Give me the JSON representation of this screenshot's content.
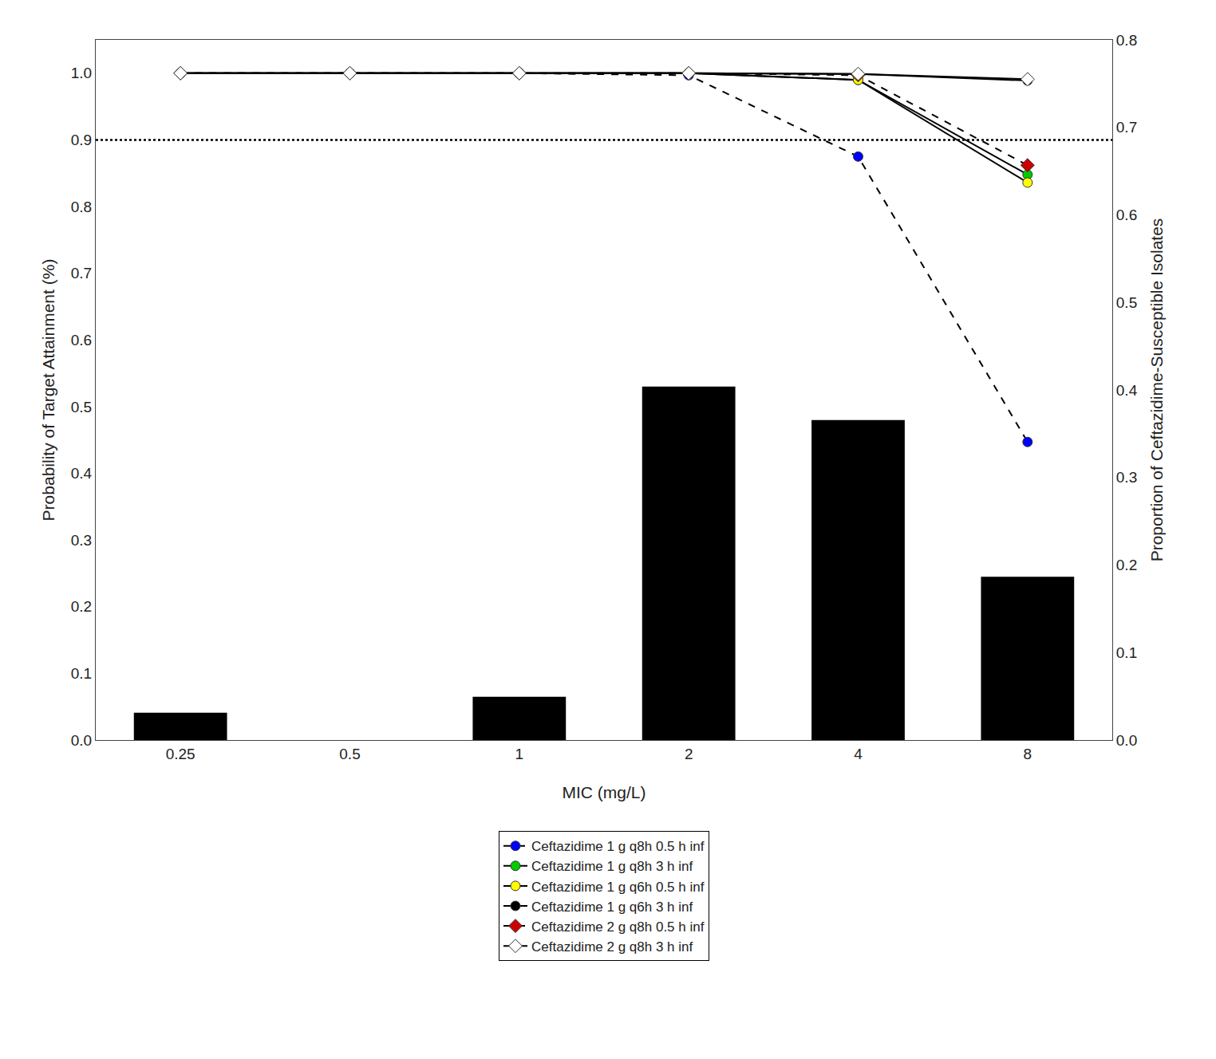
{
  "chart_data": {
    "type": "bar",
    "categories": [
      "0.25",
      "0.5",
      "1",
      "2",
      "4",
      "8"
    ],
    "x_label": "MIC (mg/L)",
    "y_label": "Probability of Target Attainment (%)",
    "y2_label": "Proportion of Ceftazidime-Susceptible Isolates",
    "ylim": [
      0.0,
      1.05
    ],
    "yticks": [
      {
        "value": 0,
        "label": "0.0"
      },
      0.1,
      0.2,
      0.3,
      0.4,
      0.5,
      0.6,
      0.7,
      0.8,
      0.9,
      {
        "value": 1,
        "label": "1.0"
      }
    ],
    "y2lim": [
      0.0,
      0.8
    ],
    "y2ticks": [
      {
        "value": 0,
        "label": "0.0"
      },
      0.1,
      0.2,
      0.3,
      0.4,
      0.5,
      0.6,
      0.7,
      0.8
    ],
    "reference_line": 0.9,
    "grid": false,
    "legend": "bottom",
    "series": [
      {
        "type": "bar",
        "color": "#000000",
        "values": [
          0.041,
          0.0,
          0.065,
          0.53,
          0.48,
          0.245
        ]
      },
      {
        "type": "line",
        "name": "Ceftazidime 1 g q8h 0.5 h inf",
        "color": "#0000FF",
        "marker": "circle",
        "line_style": "dashed",
        "values": [
          1.0,
          1.0,
          1.0,
          0.997,
          0.875,
          0.447
        ]
      },
      {
        "type": "line",
        "name": "Ceftazidime 1 g q8h 3 h inf",
        "color": "#00CC00",
        "marker": "circle",
        "line_style": "solid",
        "values": [
          1.0,
          1.0,
          1.0,
          1.0,
          0.99,
          0.848
        ]
      },
      {
        "type": "line",
        "name": "Ceftazidime 1 g q6h 0.5 h inf",
        "color": "#FFFF00",
        "marker": "circle",
        "line_style": "solid",
        "values": [
          1.0,
          1.0,
          1.0,
          1.0,
          0.99,
          0.836
        ]
      },
      {
        "type": "line",
        "name": "Ceftazidime 1 g q6h 3 h inf",
        "color": "#000000",
        "marker": "circle",
        "line_style": "solid",
        "values": [
          1.0,
          1.0,
          1.0,
          1.0,
          0.999,
          0.989
        ]
      },
      {
        "type": "line",
        "name": "Ceftazidime 2 g q8h 0.5 h inf",
        "color": "#CC0000",
        "marker": "diamond",
        "line_style": "dashed",
        "values": [
          1.0,
          1.0,
          1.0,
          1.0,
          0.997,
          0.862
        ]
      },
      {
        "type": "line",
        "name": "Ceftazidime 2 g q8h 3 h inf",
        "color": "#FFFFFF",
        "marker": "diamond",
        "line_style": "solid",
        "values": [
          1.0,
          1.0,
          1.0,
          1.0,
          0.999,
          0.991
        ]
      }
    ]
  }
}
